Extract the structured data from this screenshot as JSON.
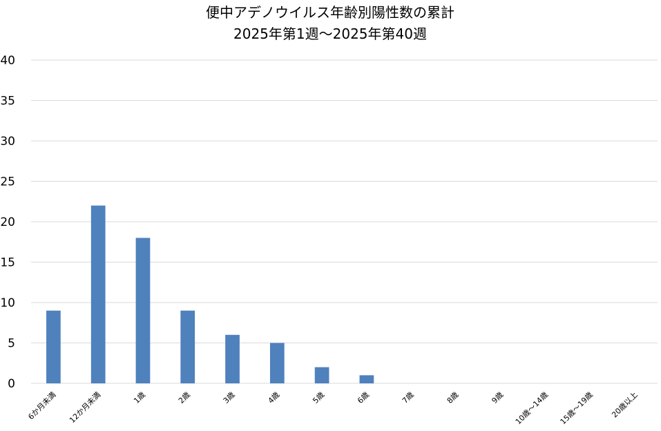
{
  "chart_data": {
    "type": "bar",
    "title": "便中アデノウイルス年齢別陽性数の累計",
    "subtitle": "2025年第1週～2025年第40週",
    "categories": [
      "6か月未満",
      "12か月未満",
      "1歳",
      "2歳",
      "3歳",
      "4歳",
      "5歳",
      "6歳",
      "7歳",
      "8歳",
      "9歳",
      "10歳～14歳",
      "15歳～19歳",
      "20歳以上"
    ],
    "values": [
      9,
      22,
      18,
      9,
      6,
      5,
      2,
      1,
      0,
      0,
      0,
      0,
      0,
      0
    ],
    "xlabel": "",
    "ylabel": "",
    "ylim": [
      0,
      40
    ],
    "yticks": [
      0,
      5,
      10,
      15,
      20,
      25,
      30,
      35,
      40
    ],
    "grid": true,
    "legend": "none",
    "bar_color": "#4f81bd",
    "grid_color": "#d9d9d9"
  }
}
